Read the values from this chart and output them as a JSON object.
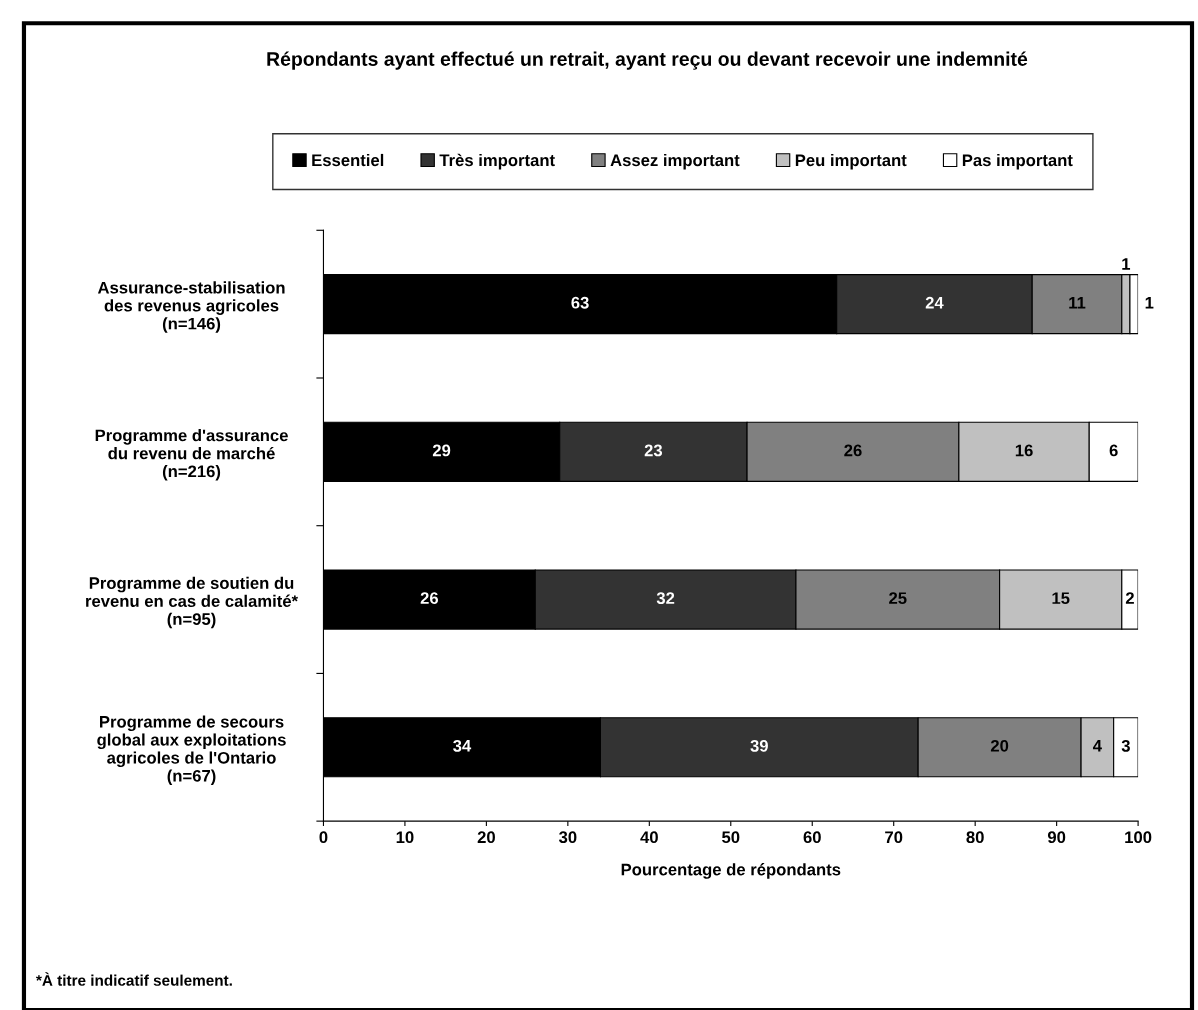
{
  "chart_data": {
    "type": "bar",
    "orientation": "horizontal",
    "stacked": true,
    "title": "Répondants ayant effectué un retrait, ayant reçu ou devant recevoir une indemnité",
    "xlabel": "Pourcentage de répondants",
    "categories": [
      "Assurance-stabilisation\ndes revenus agricoles\n(n=146)",
      "Programme d'assurance\ndu revenu de marché\n(n=216)",
      "Programme de soutien du\nrevenu en cas de calamité*\n(n=95)",
      "Programme de secours\nglobal aux exploitations\nagricoles de l'Ontario\n(n=67)"
    ],
    "series": [
      {
        "name": "Essentiel",
        "color": "#000000",
        "values": [
          63,
          29,
          26,
          34
        ]
      },
      {
        "name": "Très important",
        "color": "#333333",
        "values": [
          24,
          23,
          32,
          39
        ]
      },
      {
        "name": "Assez important",
        "color": "#808080",
        "values": [
          11,
          26,
          25,
          20
        ]
      },
      {
        "name": "Peu important",
        "color": "#c0c0c0",
        "values": [
          1,
          16,
          15,
          4
        ]
      },
      {
        "name": "Pas important",
        "color": "#ffffff",
        "values": [
          1,
          6,
          2,
          3
        ]
      }
    ],
    "xlim": [
      0,
      100
    ],
    "xticks": [
      0,
      10,
      20,
      30,
      40,
      50,
      60,
      70,
      80,
      90,
      100
    ],
    "data_labels": true,
    "legend": "top",
    "grid": false,
    "annotations": [
      "*À titre indicatif seulement."
    ]
  }
}
